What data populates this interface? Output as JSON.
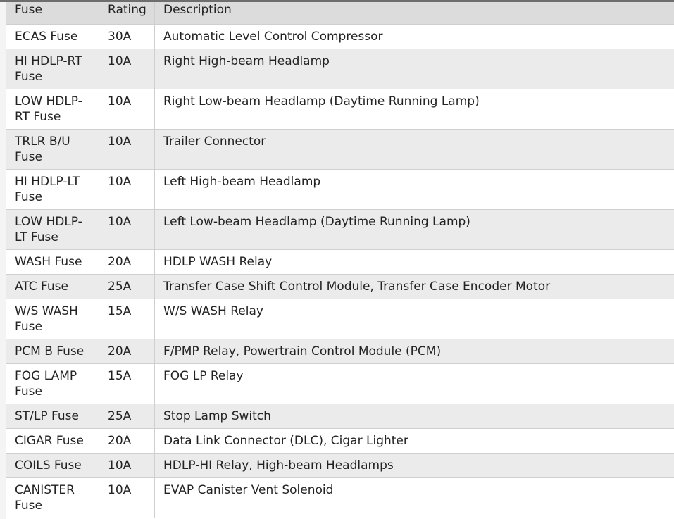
{
  "table": {
    "headers": [
      "Fuse",
      "Rating",
      "Description"
    ],
    "rows": [
      {
        "fuse": "ECAS Fuse",
        "rating": "30A",
        "description": "Automatic Level Control Compressor"
      },
      {
        "fuse": "HI HDLP-RT Fuse",
        "rating": "10A",
        "description": "Right High-beam Headlamp"
      },
      {
        "fuse": "LOW HDLP-RT Fuse",
        "rating": "10A",
        "description": "Right Low-beam Headlamp (Daytime Running Lamp)"
      },
      {
        "fuse": "TRLR B/U Fuse",
        "rating": "10A",
        "description": "Trailer Connector"
      },
      {
        "fuse": "HI HDLP-LT Fuse",
        "rating": "10A",
        "description": "Left High-beam Headlamp"
      },
      {
        "fuse": "LOW HDLP-LT Fuse",
        "rating": "10A",
        "description": "Left Low-beam Headlamp (Daytime Running Lamp)"
      },
      {
        "fuse": "WASH Fuse",
        "rating": "20A",
        "description": "HDLP WASH Relay"
      },
      {
        "fuse": "ATC Fuse",
        "rating": "25A",
        "description": "Transfer Case Shift Control Module, Transfer Case Encoder Motor"
      },
      {
        "fuse": "W/S WASH Fuse",
        "rating": "15A",
        "description": "W/S WASH Relay"
      },
      {
        "fuse": "PCM B Fuse",
        "rating": "20A",
        "description": "F/PMP Relay, Powertrain Control Module (PCM)"
      },
      {
        "fuse": "FOG LAMP Fuse",
        "rating": "15A",
        "description": "FOG LP Relay"
      },
      {
        "fuse": "ST/LP Fuse",
        "rating": "25A",
        "description": "Stop Lamp Switch"
      },
      {
        "fuse": "CIGAR Fuse",
        "rating": "20A",
        "description": "Data Link Connector (DLC), Cigar Lighter"
      },
      {
        "fuse": "COILS Fuse",
        "rating": "10A",
        "description": "HDLP-HI Relay, High-beam Headlamps"
      },
      {
        "fuse": "CANISTER Fuse",
        "rating": "10A",
        "description": "EVAP Canister Vent Solenoid"
      }
    ]
  },
  "colors": {
    "header_bg": "#dcdcdc",
    "row_alt_bg": "#ebebeb",
    "border": "#cfcfcf",
    "top_bar": "#6e6e6e"
  }
}
